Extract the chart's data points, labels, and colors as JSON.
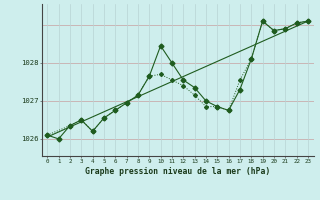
{
  "title": "Graphe pression niveau de la mer (hPa)",
  "background_color": "#ceeeed",
  "plot_bg_color": "#ceeeed",
  "line_color": "#1f5c1f",
  "grid_color_h": "#c0dcdc",
  "grid_color_v": "#c8e4e4",
  "x_min": -0.5,
  "x_max": 23.5,
  "y_min": 1025.55,
  "y_max": 1029.55,
  "yticks": [
    1026,
    1027,
    1028
  ],
  "xticks": [
    0,
    1,
    2,
    3,
    4,
    5,
    6,
    7,
    8,
    9,
    10,
    11,
    12,
    13,
    14,
    15,
    16,
    17,
    18,
    19,
    20,
    21,
    22,
    23
  ],
  "series1_x": [
    0,
    1,
    2,
    3,
    4,
    5,
    6,
    7,
    8,
    9,
    10,
    11,
    12,
    13,
    14,
    15,
    16,
    17,
    18,
    19,
    20,
    21,
    22,
    23
  ],
  "series1_y": [
    1026.1,
    1026.0,
    1026.35,
    1026.5,
    1026.2,
    1026.55,
    1026.75,
    1026.95,
    1027.15,
    1027.65,
    1028.45,
    1028.0,
    1027.55,
    1027.35,
    1027.0,
    1026.85,
    1026.75,
    1027.3,
    1028.1,
    1029.1,
    1028.85,
    1028.9,
    1029.05,
    1029.1
  ],
  "series2_x": [
    0,
    2,
    3,
    4,
    5,
    6,
    7,
    8,
    9,
    10,
    11,
    12,
    13,
    14,
    15,
    16,
    17,
    18,
    19,
    20,
    21,
    22,
    23
  ],
  "series2_y": [
    1026.1,
    1026.35,
    1026.5,
    1026.2,
    1026.55,
    1026.75,
    1026.95,
    1027.15,
    1027.65,
    1027.7,
    1027.55,
    1027.4,
    1027.15,
    1026.85,
    1026.85,
    1026.75,
    1027.55,
    1028.1,
    1029.1,
    1028.85,
    1028.9,
    1029.05,
    1029.1
  ],
  "series3_x": [
    0,
    23
  ],
  "series3_y": [
    1026.05,
    1029.1
  ]
}
